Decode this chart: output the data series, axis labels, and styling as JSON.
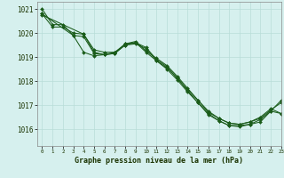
{
  "title": "Graphe pression niveau de la mer (hPa)",
  "background_color": "#d6f0ee",
  "grid_color": "#b8ddd8",
  "line_color": "#1a5c1a",
  "xlim": [
    -0.5,
    23
  ],
  "ylim": [
    1015.3,
    1021.3
  ],
  "yticks": [
    1016,
    1017,
    1018,
    1019,
    1020,
    1021
  ],
  "xticks": [
    0,
    1,
    2,
    3,
    4,
    5,
    6,
    7,
    8,
    9,
    10,
    11,
    12,
    13,
    14,
    15,
    16,
    17,
    18,
    19,
    20,
    21,
    22,
    23
  ],
  "series": [
    {
      "x": [
        0,
        1,
        2,
        3,
        4,
        5,
        6,
        7,
        8,
        9,
        10,
        11,
        12,
        13,
        14,
        15,
        16,
        17,
        18,
        19,
        20,
        21,
        22,
        23
      ],
      "y": [
        1021.0,
        1020.35,
        1020.35,
        1019.9,
        1019.2,
        1019.05,
        1019.1,
        1019.2,
        1019.5,
        1019.6,
        1019.2,
        1018.85,
        1018.55,
        1018.15,
        1017.6,
        1017.1,
        1016.6,
        1016.35,
        1016.15,
        1016.1,
        1016.2,
        1016.3,
        1016.75,
        1017.2
      ]
    },
    {
      "x": [
        0,
        1,
        2,
        3,
        4,
        5,
        6,
        7,
        8,
        9,
        10,
        11,
        12,
        13,
        14,
        15,
        16,
        17,
        18,
        19,
        20,
        21,
        22,
        23
      ],
      "y": [
        1020.8,
        1020.25,
        1020.25,
        1020.0,
        1019.95,
        1019.3,
        1019.2,
        1019.2,
        1019.55,
        1019.65,
        1019.25,
        1018.95,
        1018.65,
        1018.2,
        1017.7,
        1017.2,
        1016.7,
        1016.45,
        1016.25,
        1016.2,
        1016.3,
        1016.45,
        1016.8,
        1017.1
      ]
    },
    {
      "x": [
        0,
        3,
        4,
        5,
        6,
        7,
        8,
        9,
        10,
        11,
        12,
        13,
        14,
        15,
        16,
        17,
        18,
        19,
        20,
        21,
        22,
        23
      ],
      "y": [
        1020.8,
        1019.9,
        1019.85,
        1019.15,
        1019.1,
        1019.15,
        1019.5,
        1019.55,
        1019.35,
        1018.85,
        1018.5,
        1018.05,
        1017.55,
        1017.1,
        1016.65,
        1016.35,
        1016.15,
        1016.15,
        1016.2,
        1016.4,
        1016.75,
        1016.65
      ]
    },
    {
      "x": [
        0,
        4,
        5,
        6,
        7,
        8,
        9,
        10,
        11,
        12,
        13,
        14,
        15,
        16,
        17,
        18,
        19,
        20,
        21,
        22,
        23
      ],
      "y": [
        1020.75,
        1019.95,
        1019.2,
        1019.1,
        1019.15,
        1019.55,
        1019.6,
        1019.4,
        1018.9,
        1018.6,
        1018.1,
        1017.65,
        1017.2,
        1016.75,
        1016.45,
        1016.25,
        1016.2,
        1016.3,
        1016.5,
        1016.85,
        1016.65
      ]
    }
  ]
}
